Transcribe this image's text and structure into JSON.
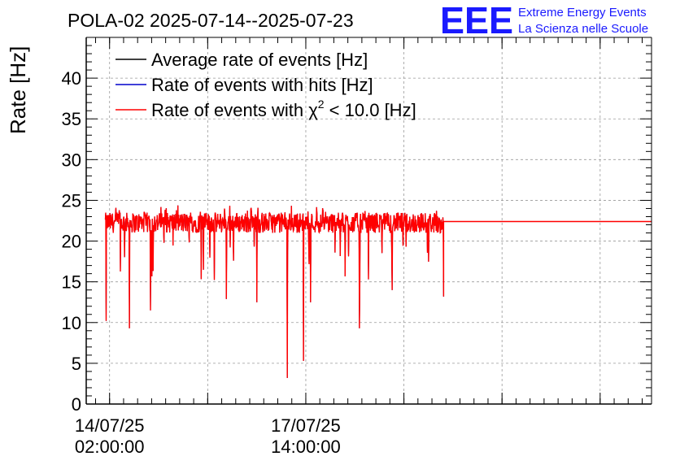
{
  "header": {
    "title": "POLA-02 2025-07-14--2025-07-23",
    "logo_text": "EEE",
    "logo_line1": "Extreme Energy Events",
    "logo_line2": "La Scienza nelle Scuole"
  },
  "colors": {
    "average": "#000000",
    "hits": "#0000cc",
    "chi2": "#ff0000",
    "logo": "#1a1aff",
    "grid": "#9a9a9a"
  },
  "chart_data": {
    "type": "line",
    "title": "POLA-02 2025-07-14--2025-07-23",
    "ylabel": "Rate [Hz]",
    "xlabel": "",
    "ylim": [
      0,
      45
    ],
    "yticks": [
      0,
      5,
      10,
      15,
      20,
      25,
      30,
      35,
      40
    ],
    "x_ticks": [
      {
        "line1": "14/07/25",
        "line2": "02:00:00"
      },
      {
        "line1": "17/07/25",
        "line2": "14:00:00"
      }
    ],
    "x_range_hours": [
      -10,
      232
    ],
    "x_tick_hours": [
      0,
      84
    ],
    "grid": true,
    "legend_position": "top-left",
    "legend": [
      {
        "label_main": "Average rate of events [Hz]",
        "sup": "",
        "label_tail": ""
      },
      {
        "label_main": "Rate of events with hits [Hz]",
        "sup": "",
        "label_tail": ""
      },
      {
        "label_main": "Rate of events with χ",
        "sup": "2",
        "label_tail": " < 10.0 [Hz]"
      }
    ],
    "series_baseline": 22.0,
    "series_noise_band": [
      21.0,
      23.5
    ],
    "dips": [
      {
        "hour": -1.5,
        "value": 10.2
      },
      {
        "hour": 8.5,
        "value": 9.3
      },
      {
        "hour": 17.5,
        "value": 11.5
      },
      {
        "hour": 50,
        "value": 12.9
      },
      {
        "hour": 63,
        "value": 12.5
      },
      {
        "hour": 76,
        "value": 3.2
      },
      {
        "hour": 83,
        "value": 5.3
      },
      {
        "hour": 86,
        "value": 12.5
      },
      {
        "hour": 107,
        "value": 9.3
      },
      {
        "hour": 121,
        "value": 14.0
      },
      {
        "hour": 143,
        "value": 13.2
      }
    ],
    "flat_tail": {
      "from_hour": 143,
      "to_hour": 232,
      "value": 22.4
    }
  }
}
